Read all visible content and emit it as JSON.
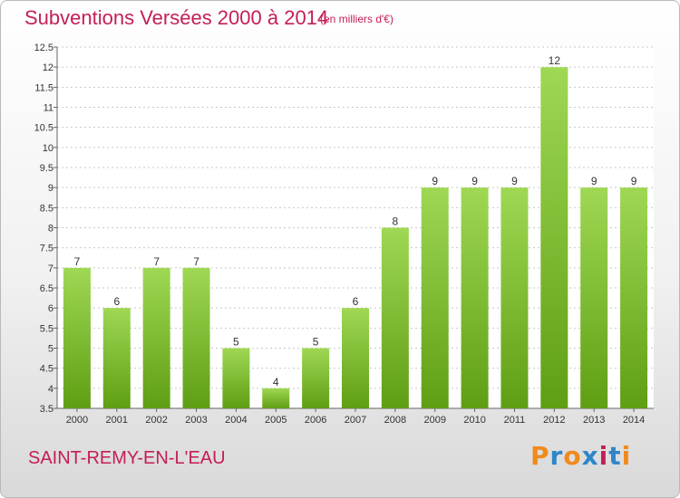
{
  "header": {
    "title": "Subventions Versées 2000 à 2014",
    "subtitle": "(en milliers d'€)"
  },
  "footer": {
    "commune": "SAINT-REMY-EN-L'EAU",
    "brand": "Proxiti"
  },
  "colors": {
    "title": "#c41e56",
    "bar_top": "#9fd854",
    "bar_bottom": "#5f9e14",
    "brand_letters": [
      "#f08a1c",
      "#2e86c9",
      "#f08a1c",
      "#2e86c9",
      "#c41e56",
      "#2e86c9",
      "#f08a1c"
    ]
  },
  "chart_data": {
    "type": "bar",
    "categories": [
      "2000",
      "2001",
      "2002",
      "2003",
      "2004",
      "2005",
      "2006",
      "2007",
      "2008",
      "2009",
      "2010",
      "2011",
      "2012",
      "2013",
      "2014"
    ],
    "values": [
      7,
      6,
      7,
      7,
      5,
      4,
      5,
      6,
      8,
      9,
      9,
      9,
      12,
      9,
      9
    ],
    "ylim": [
      3.5,
      12.5
    ],
    "yticks": [
      "3.5",
      "4",
      "4.5",
      "5",
      "5.5",
      "6",
      "6.5",
      "7",
      "7.5",
      "8",
      "8.5",
      "9",
      "9.5",
      "10",
      "10.5",
      "11",
      "11.5",
      "12",
      "12.5"
    ],
    "grid": true
  }
}
